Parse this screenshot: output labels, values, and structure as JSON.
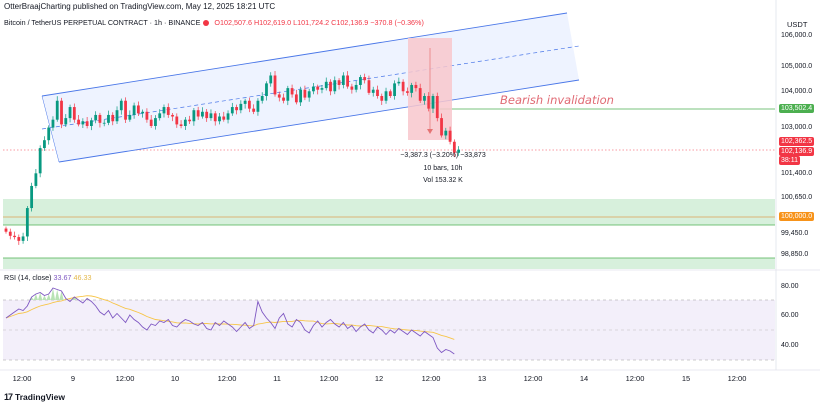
{
  "header": {
    "title": "OtterBraajCharting published on TradingView.com, May 12, 2025 18:21 UTC"
  },
  "symbol": {
    "name": "Bitcoin / TetherUS PERPETUAL CONTRACT · 1h · BINANCE",
    "open": "O102,507.6",
    "high": "H102,619.0",
    "low": "L101,724.2",
    "close": "C102,136.9",
    "change": "−370.8 (−0.36%)"
  },
  "currency": "USDT",
  "price_axis": [
    {
      "label": "106,000.0",
      "price": 106000
    },
    {
      "label": "105,000.0",
      "price": 105000
    },
    {
      "label": "104,000.0",
      "price": 104000
    },
    {
      "label": "103,000.0",
      "price": 103000
    },
    {
      "label": "101,400.0",
      "price": 101400
    },
    {
      "label": "100,650.0",
      "price": 100650
    },
    {
      "label": "99,450.0",
      "price": 99450
    },
    {
      "label": "98,850.0",
      "price": 98850
    }
  ],
  "price_tags": {
    "level_tag": "103,502.4",
    "current_high": "102,362.5",
    "current_price": "102,136.9",
    "countdown": "38:11",
    "support_tag": "100,000.0"
  },
  "annotations": {
    "bearish": "Bearish invalidation",
    "measure_line1": "−3,387.3 (−3.20%) −33,873",
    "measure_line2": "10 bars, 10h",
    "measure_line3": "Vol 153.32 K"
  },
  "rsi": {
    "title": "RSI (14, close)",
    "value1": "33.67",
    "value2": "46.33",
    "axis": [
      "80.00",
      "60.00",
      "40.00"
    ]
  },
  "x_axis": [
    "12:00",
    "9",
    "12:00",
    "10",
    "12:00",
    "11",
    "12:00",
    "12",
    "12:00",
    "13",
    "12:00",
    "14",
    "12:00",
    "15",
    "12:00"
  ],
  "footer": {
    "brand": "TradingView"
  },
  "colors": {
    "up": "#089981",
    "down": "#f23645",
    "channel": "#2962ff",
    "rsi_line": "#7e57c2",
    "rsi_ma": "#f7c548",
    "support_zone": "#c8ecd0",
    "red_zone": "#f8c7cc"
  },
  "chart_data": {
    "type": "candlestick",
    "interval": "1h",
    "ylim": [
      98600,
      106300
    ],
    "closes": [
      99750,
      99620,
      99580,
      99460,
      99600,
      100500,
      101200,
      101600,
      102400,
      102650,
      103050,
      103300,
      103900,
      103150,
      103350,
      103700,
      103300,
      103150,
      103250,
      103100,
      103280,
      103450,
      103200,
      103200,
      103450,
      103250,
      103600,
      103900,
      103300,
      103450,
      103750,
      103500,
      103550,
      103300,
      103100,
      103350,
      103500,
      103700,
      103450,
      103400,
      103150,
      103100,
      103300,
      103250,
      103600,
      103400,
      103550,
      103350,
      103500,
      103250,
      103400,
      103300,
      103500,
      103700,
      103600,
      103800,
      103900,
      103650,
      103550,
      103900,
      104050,
      104450,
      104700,
      104100,
      104000,
      103900,
      104300,
      104100,
      103850,
      104250,
      104000,
      104200,
      104350,
      104250,
      104300,
      104500,
      104200,
      104550,
      104400,
      104700,
      104350,
      104250,
      104400,
      104650,
      104550,
      104150,
      104250,
      104050,
      103900,
      104200,
      104050,
      104450,
      104500,
      104200,
      104150,
      104400,
      104300,
      103900,
      104050,
      103650,
      104050,
      103350,
      102800,
      102950,
      102600,
      102250,
      102350
    ],
    "rsi_values": [
      58,
      60,
      62,
      64,
      63,
      66,
      72,
      74,
      75,
      73,
      74,
      78,
      77,
      76,
      71,
      69,
      72,
      70,
      68,
      71,
      69,
      66,
      62,
      60,
      63,
      58,
      61,
      58,
      55,
      60,
      57,
      55,
      52,
      50,
      54,
      53,
      56,
      55,
      57,
      53,
      52,
      55,
      57,
      56,
      54,
      53,
      55,
      51,
      50,
      55,
      53,
      56,
      54,
      52,
      49,
      52,
      55,
      51,
      53,
      69,
      62,
      58,
      55,
      51,
      58,
      61,
      54,
      52,
      57,
      55,
      50,
      48,
      53,
      56,
      52,
      55,
      57,
      54,
      52,
      55,
      51,
      53,
      49,
      52,
      54,
      50,
      48,
      52,
      50,
      47,
      50,
      48,
      51,
      49,
      47,
      50,
      48,
      46,
      49,
      47,
      45,
      38,
      35,
      37,
      36,
      34
    ]
  }
}
